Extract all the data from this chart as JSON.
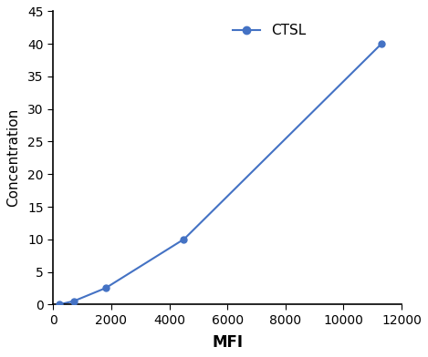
{
  "x": [
    200,
    700,
    1800,
    4500,
    11300
  ],
  "y": [
    0.0,
    0.5,
    2.5,
    10.0,
    40.0
  ],
  "line_color": "#4472C4",
  "marker_color": "#4472C4",
  "marker_style": "o",
  "marker_size": 5,
  "line_width": 1.5,
  "xlabel": "MFI",
  "ylabel": "Concentration",
  "xlabel_fontsize": 12,
  "ylabel_fontsize": 11,
  "legend_label": "CTSL",
  "xlim": [
    0,
    12000
  ],
  "ylim": [
    0,
    45
  ],
  "xticks": [
    0,
    2000,
    4000,
    6000,
    8000,
    10000,
    12000
  ],
  "yticks": [
    0,
    5,
    10,
    15,
    20,
    25,
    30,
    35,
    40,
    45
  ],
  "tick_fontsize": 10,
  "background_color": "#ffffff",
  "legend_fontsize": 11,
  "legend_marker_size": 6,
  "fig_width": 4.69,
  "fig_height": 3.92,
  "dpi": 100
}
